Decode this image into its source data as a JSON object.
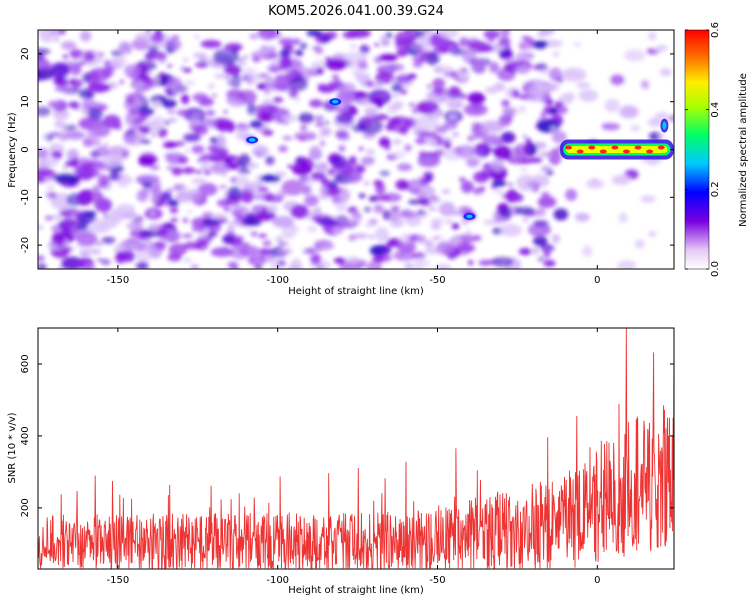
{
  "title": "KOM5.2026.041.00.39.G24",
  "chart_data": [
    {
      "type": "heatmap",
      "xlabel": "Height of straight line (km)",
      "ylabel": "Frequency (Hz)",
      "xlim": [
        -175,
        24
      ],
      "ylim": [
        -25,
        25
      ],
      "x_ticks": [
        -150,
        -100,
        -50,
        0
      ],
      "y_ticks": [
        -20,
        -10,
        0,
        10,
        20
      ],
      "colorbar": {
        "label": "Normalized spectral amplitude",
        "range": [
          0.0,
          0.6
        ],
        "ticks": [
          0.0,
          0.2,
          0.4,
          0.6
        ],
        "tick_labels": [
          "0.0",
          "0.2",
          "0.4",
          "0.6"
        ]
      },
      "signal_band": {
        "x_start": -11,
        "x_end": 22,
        "freq": 0,
        "peak_amplitude": 0.58
      },
      "hotspots": [
        {
          "x": -40,
          "freq": -14,
          "amplitude": 0.22
        },
        {
          "x": -108,
          "freq": 2,
          "amplitude": 0.18
        },
        {
          "x": -82,
          "freq": 10,
          "amplitude": 0.18
        }
      ]
    },
    {
      "type": "line",
      "xlabel": "Height of straight line (km)",
      "ylabel": "SNR (10 * v/v)",
      "xlim": [
        -175,
        24
      ],
      "ylim": [
        30,
        700
      ],
      "x_ticks": [
        -150,
        -100,
        -50,
        0
      ],
      "y_ticks": [
        200,
        400,
        600
      ],
      "series": [
        {
          "name": "SNR",
          "color": "#ee3333",
          "x_start": -175,
          "x_end": 24,
          "baseline_points": [
            [
              -175,
              100
            ],
            [
              -60,
              100
            ],
            [
              -30,
              130
            ],
            [
              -10,
              160
            ],
            [
              0,
              220
            ],
            [
              10,
              250
            ],
            [
              24,
              310
            ]
          ],
          "noise_amplitude_points": [
            [
              -175,
              90
            ],
            [
              -60,
              100
            ],
            [
              -30,
              130
            ],
            [
              -10,
              150
            ],
            [
              0,
              190
            ],
            [
              24,
              240
            ]
          ]
        }
      ]
    }
  ]
}
